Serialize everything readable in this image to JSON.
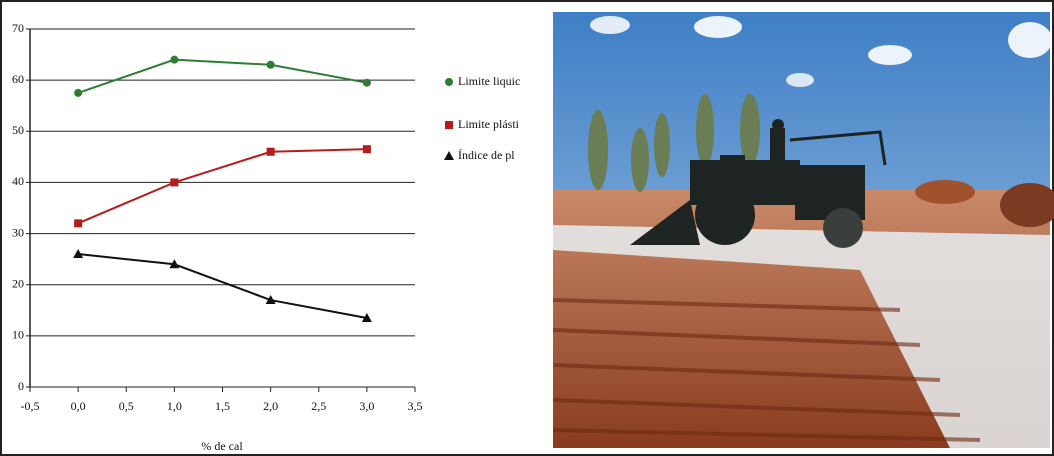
{
  "chart_data": {
    "type": "line",
    "x_label": "% de cal",
    "xlim": [
      -0.5,
      3.5
    ],
    "xticks": [
      {
        "value": -0.5,
        "label": "-0,5"
      },
      {
        "value": 0,
        "label": "0,0"
      },
      {
        "value": 0.5,
        "label": "0,5"
      },
      {
        "value": 1,
        "label": "1,0"
      },
      {
        "value": 1.5,
        "label": "1,5"
      },
      {
        "value": 2,
        "label": "2,0"
      },
      {
        "value": 2.5,
        "label": "2,5"
      },
      {
        "value": 3,
        "label": "3,0"
      },
      {
        "value": 3.5,
        "label": "3,5"
      }
    ],
    "ylim": [
      0,
      70
    ],
    "yticks": [
      0,
      10,
      20,
      30,
      40,
      50,
      60,
      70
    ],
    "grid": true,
    "legend": "right",
    "x": [
      0,
      1,
      2,
      3
    ],
    "series": [
      {
        "name": "Limite liquic",
        "color": "#2e7d32",
        "marker": "circle",
        "values": [
          57.5,
          64,
          63,
          59.5
        ]
      },
      {
        "name": "Limite plásti",
        "color": "#b71c1c",
        "marker": "square",
        "values": [
          32,
          40,
          46,
          46.5
        ]
      },
      {
        "name": "Índice de pl",
        "color": "#111111",
        "marker": "triangle",
        "values": [
          26,
          24,
          17,
          13.5
        ]
      }
    ]
  }
}
